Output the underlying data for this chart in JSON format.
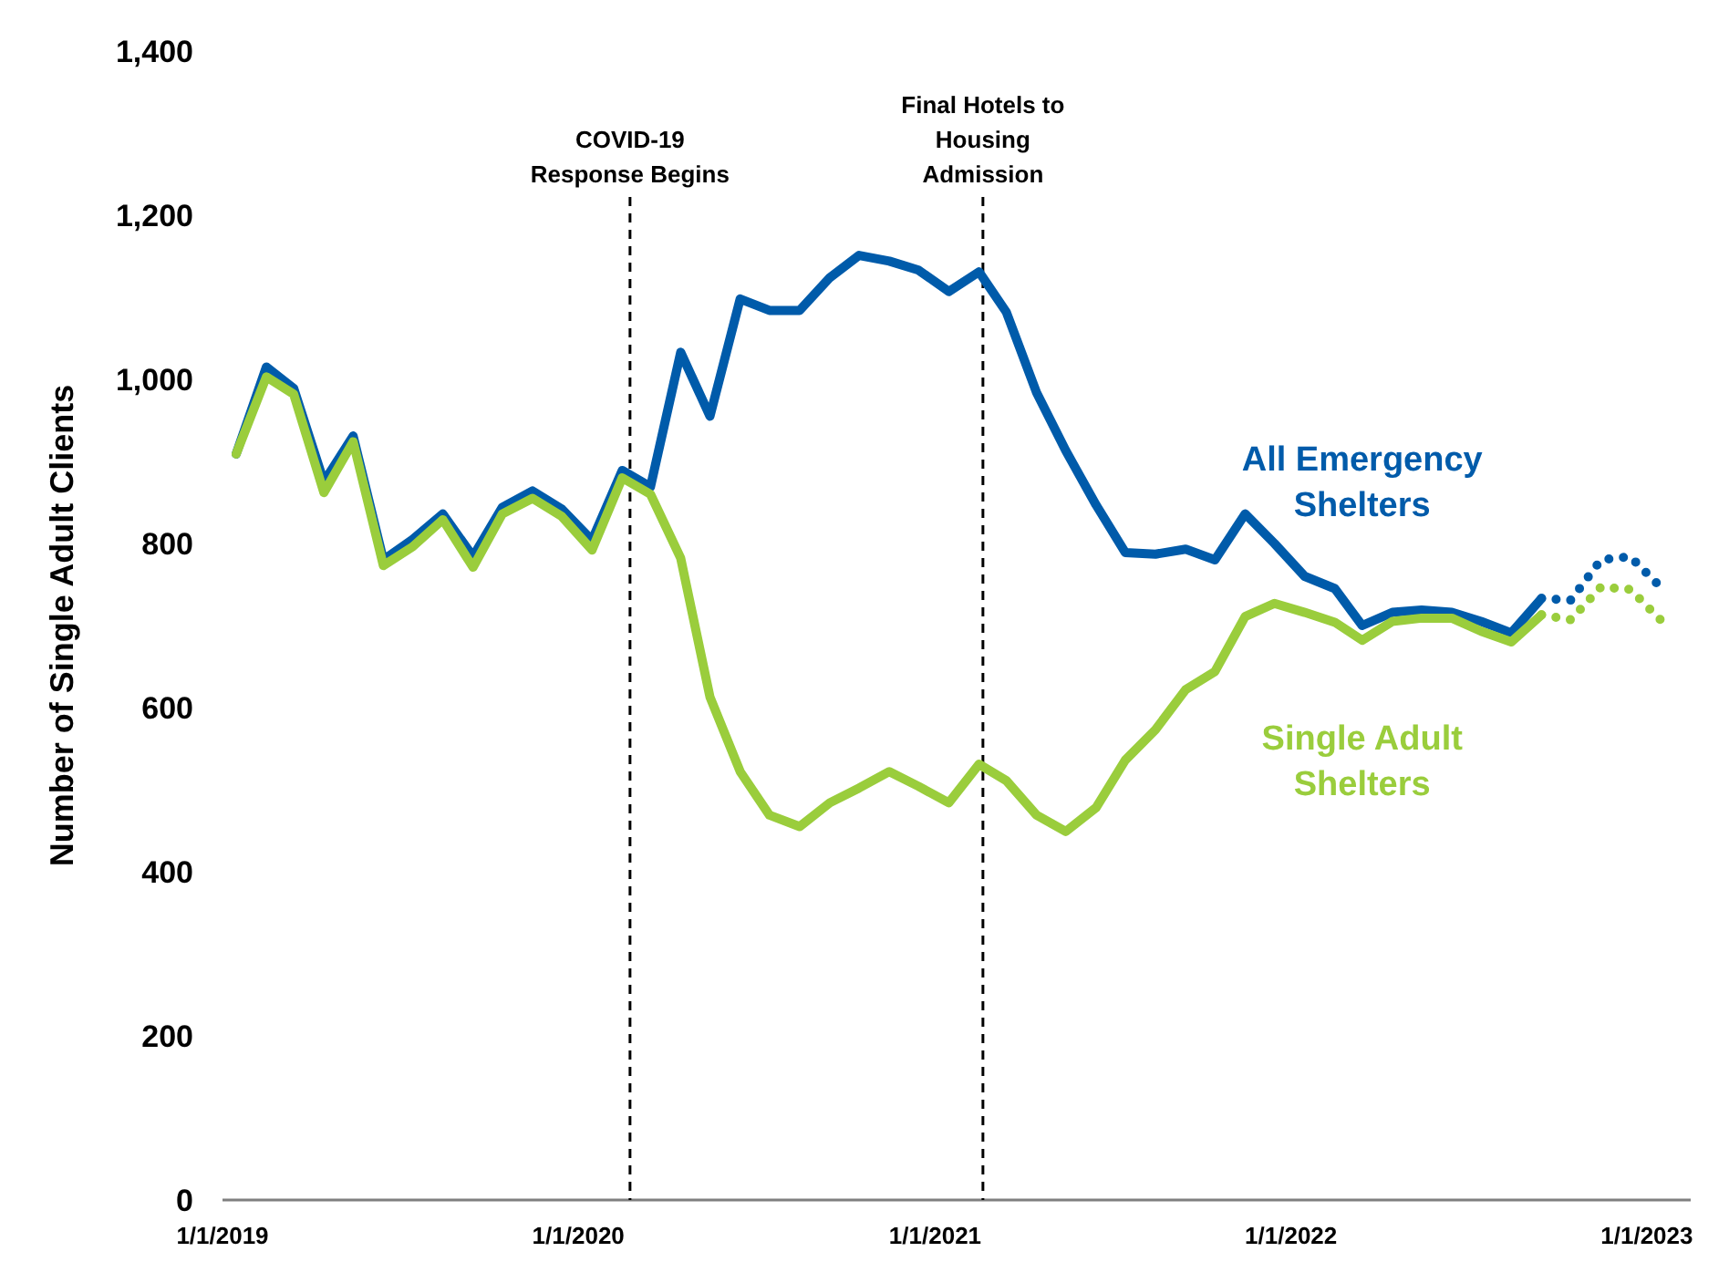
{
  "chart_data": {
    "type": "line",
    "ylabel": "Number of Single Adult Clients",
    "ylim": [
      0,
      1400
    ],
    "yticks": [
      0,
      {
        "value": 200,
        "label": "200"
      },
      {
        "value": 400,
        "label": "400"
      },
      {
        "value": 600,
        "label": "600"
      },
      {
        "value": 800,
        "label": "800"
      },
      {
        "value": 1000,
        "label": "1,000"
      },
      {
        "value": 1200,
        "label": "1,200"
      },
      {
        "value": 1400,
        "label": "1,400"
      }
    ],
    "xlim": [
      "2019-01-01",
      "2023-02-15"
    ],
    "xticks": [
      {
        "value": "2019-01-01",
        "label": "1/1/2019"
      },
      {
        "value": "2020-01-01",
        "label": "1/1/2020"
      },
      {
        "value": "2021-01-01",
        "label": "1/1/2021"
      },
      {
        "value": "2022-01-01",
        "label": "1/1/2022"
      },
      {
        "value": "2023-01-01",
        "label": "1/1/2023"
      }
    ],
    "grid": false,
    "marker": "none",
    "x": [
      "2019-01-15",
      "2019-02-15",
      "2019-03-15",
      "2019-04-15",
      "2019-05-15",
      "2019-06-15",
      "2019-07-15",
      "2019-08-15",
      "2019-09-15",
      "2019-10-15",
      "2019-11-15",
      "2019-12-15",
      "2020-01-15",
      "2020-02-15",
      "2020-03-15",
      "2020-04-15",
      "2020-05-15",
      "2020-06-15",
      "2020-07-15",
      "2020-08-15",
      "2020-09-15",
      "2020-10-15",
      "2020-11-15",
      "2020-12-15",
      "2021-01-15",
      "2021-02-15",
      "2021-03-15",
      "2021-04-15",
      "2021-05-15",
      "2021-06-15",
      "2021-07-15",
      "2021-08-15",
      "2021-09-15",
      "2021-10-15",
      "2021-11-15",
      "2021-12-15",
      "2022-01-15",
      "2022-02-15",
      "2022-03-15",
      "2022-04-15",
      "2022-05-15",
      "2022-06-15",
      "2022-07-15",
      "2022-08-15",
      "2022-09-15"
    ],
    "series": [
      {
        "name": "All Emergency Shelters",
        "color": "#005baa",
        "line_style": "solid",
        "values": [
          909,
          1015,
          989,
          875,
          931,
          780,
          805,
          836,
          784,
          844,
          864,
          842,
          804,
          889,
          869,
          1033,
          955,
          1098,
          1084,
          1084,
          1124,
          1151,
          1144,
          1133,
          1107,
          1131,
          1082,
          984,
          913,
          847,
          789,
          787,
          793,
          780,
          836,
          800,
          760,
          745,
          700,
          716,
          719,
          716,
          705,
          691,
          733
        ]
      },
      {
        "name": "Single Adult Shelters",
        "color": "#9acd3c",
        "line_style": "solid",
        "values": [
          909,
          1003,
          982,
          862,
          924,
          773,
          796,
          829,
          771,
          836,
          855,
          833,
          792,
          880,
          860,
          782,
          613,
          522,
          469,
          455,
          484,
          502,
          522,
          504,
          484,
          531,
          511,
          469,
          449,
          478,
          536,
          573,
          622,
          644,
          711,
          727,
          716,
          704,
          682,
          705,
          709,
          709,
          693,
          680,
          713
        ]
      },
      {
        "color": "#005baa",
        "line_style": "dotted",
        "x": [
          "2022-09-15",
          "2022-10-15",
          "2022-11-15",
          "2022-12-15",
          "2023-01-15"
        ],
        "values": [
          733,
          731,
          780,
          784,
          747
        ]
      },
      {
        "color": "#9acd3c",
        "line_style": "dotted",
        "x": [
          "2022-09-15",
          "2022-10-15",
          "2022-11-15",
          "2022-12-15",
          "2023-01-15"
        ],
        "values": [
          713,
          707,
          747,
          744,
          707
        ]
      }
    ],
    "ref_lines": [
      {
        "axis": "x",
        "value": "2020-02-23",
        "label": "COVID-19 Response Begins",
        "line_style": "dashed",
        "color": "#000000"
      },
      {
        "axis": "x",
        "value": "2021-02-19",
        "label": "Final Hotels to Housing Admission",
        "line_style": "dashed",
        "color": "#000000"
      }
    ]
  }
}
